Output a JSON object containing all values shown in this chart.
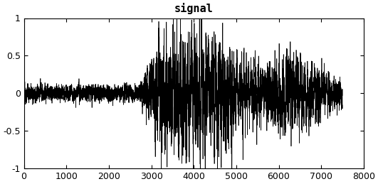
{
  "title": "signal",
  "xlim": [
    0,
    8000
  ],
  "ylim": [
    -1,
    1
  ],
  "xticks": [
    0,
    1000,
    2000,
    3000,
    4000,
    5000,
    6000,
    7000,
    8000
  ],
  "yticks": [
    -1,
    -0.5,
    0,
    0.5,
    1
  ],
  "ytick_labels": [
    "-1",
    "-0.5",
    "0",
    "0.5",
    "1"
  ],
  "line_color": "#000000",
  "bg_color": "#ffffff",
  "n_samples": 7501,
  "seed": 12345,
  "title_fontsize": 11,
  "tick_fontsize": 9,
  "figsize": [
    5.31,
    2.59
  ],
  "dpi": 100
}
